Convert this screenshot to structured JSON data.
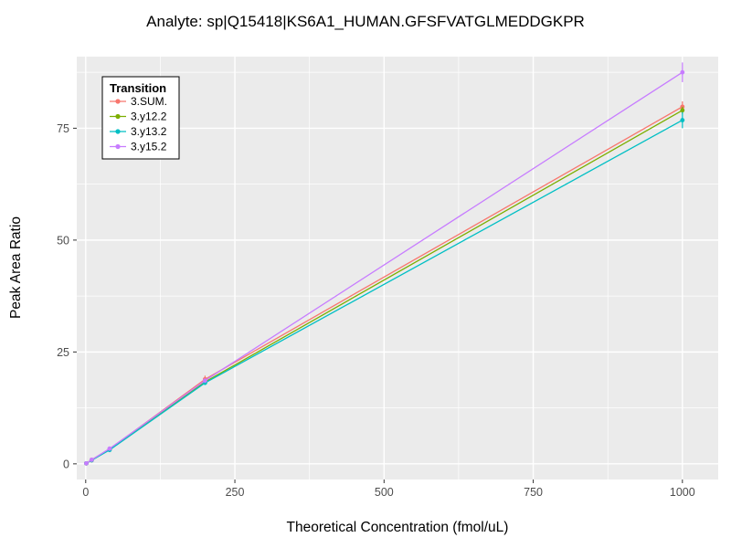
{
  "chart_data": {
    "type": "line",
    "title": "Analyte: sp|Q15418|KS6A1_HUMAN.GFSFVATGLMEDDGKPR",
    "xlabel": "Theoretical Concentration (fmol/uL)",
    "ylabel": "Peak Area Ratio",
    "legend_title": "Transition",
    "xlim": [
      -15,
      1060
    ],
    "ylim": [
      -3.5,
      91
    ],
    "xticks": [
      0,
      250,
      500,
      750,
      1000
    ],
    "yticks": [
      0,
      25,
      50,
      75
    ],
    "x_minor": [
      125,
      375,
      625,
      875
    ],
    "y_minor": [
      12.5,
      37.5,
      62.5,
      87.5
    ],
    "grid": true,
    "legend_position": "top-left-inside",
    "style": {
      "panel_bg": "#EBEBEB",
      "grid_color": "#FFFFFF",
      "tick_color": "#333333",
      "tick_label_color": "#4d4d4d",
      "legend_bg": "#FFFFFF",
      "legend_border": "#000000"
    },
    "series": [
      {
        "name": "3.SUM.",
        "color": "#F8766D",
        "x": [
          1,
          10,
          40,
          200,
          1000
        ],
        "y": [
          0.1,
          0.9,
          3.3,
          18.9,
          79.8
        ],
        "yerr": [
          0,
          0,
          0,
          0.8,
          1.2
        ]
      },
      {
        "name": "3.y12.2",
        "color": "#7CAE00",
        "x": [
          1,
          10,
          40,
          200,
          1000
        ],
        "y": [
          0.1,
          0.8,
          3.2,
          18.3,
          79.0
        ],
        "yerr": [
          0,
          0,
          0,
          0.4,
          0.8
        ]
      },
      {
        "name": "3.y13.2",
        "color": "#00BFC4",
        "x": [
          1,
          10,
          40,
          200,
          1000
        ],
        "y": [
          0.1,
          0.8,
          3.1,
          18.1,
          76.8
        ],
        "yerr": [
          0,
          0,
          0,
          0.4,
          1.8
        ]
      },
      {
        "name": "3.y15.2",
        "color": "#C77CFF",
        "x": [
          1,
          10,
          40,
          200,
          1000
        ],
        "y": [
          0.1,
          0.9,
          3.4,
          18.6,
          87.5
        ],
        "yerr": [
          0,
          0,
          0,
          0.4,
          2.2
        ]
      }
    ]
  }
}
